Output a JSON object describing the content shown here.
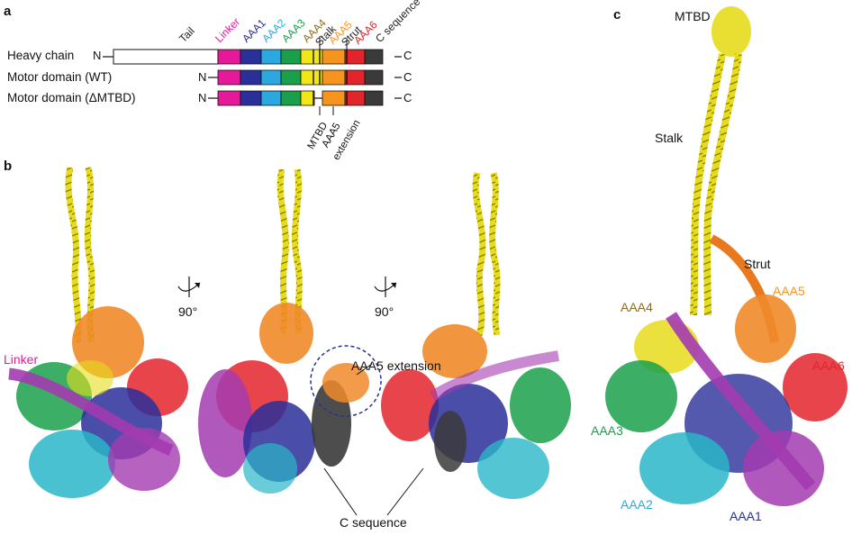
{
  "panels": {
    "a": "a",
    "b": "b",
    "c": "c"
  },
  "panel_a": {
    "rows": [
      "Heavy chain",
      "Motor domain (WT)",
      "Motor domain (ΔMTBD)"
    ],
    "n_term": "N",
    "c_term": "C",
    "domains": [
      {
        "label": "Tail",
        "color": "#222222"
      },
      {
        "label": "Linker",
        "color": "#e6199b"
      },
      {
        "label": "AAA1",
        "color": "#2a2f9a"
      },
      {
        "label": "AAA2",
        "color": "#29a9e0"
      },
      {
        "label": "AAA3",
        "color": "#1aa04a"
      },
      {
        "label": "AAA4",
        "color": "#8a6d1e"
      },
      {
        "label": "Stalk",
        "color": "#222222"
      },
      {
        "label": "AAA5",
        "color": "#f7941d"
      },
      {
        "label": "Strut",
        "color": "#222222"
      },
      {
        "label": "AAA6",
        "color": "#e3242b"
      },
      {
        "label": "C sequence",
        "color": "#222222"
      }
    ],
    "segment_colors": {
      "linker": "#e6199b",
      "aaa1": "#2a2f9a",
      "aaa2": "#29a9e0",
      "aaa3": "#1aa04a",
      "aaa4": "#f2e615",
      "aaa5": "#f7941d",
      "aaa6": "#e3242b",
      "cseq": "#3a3a3a"
    },
    "below_labels": [
      "MTBD",
      "AAA5",
      "extension"
    ]
  },
  "panel_b": {
    "linker_label": "Linker",
    "rotation_label": "90°",
    "aaa5ext_label": "AAA5 extension",
    "cseq_label": "C sequence"
  },
  "panel_c": {
    "labels": [
      {
        "text": "MTBD",
        "color": "#111111"
      },
      {
        "text": "Stalk",
        "color": "#111111"
      },
      {
        "text": "Strut",
        "color": "#111111"
      },
      {
        "text": "AAA5",
        "color": "#f7941d"
      },
      {
        "text": "AAA4",
        "color": "#8a6d1e"
      },
      {
        "text": "AAA6",
        "color": "#e3242b"
      },
      {
        "text": "AAA3",
        "color": "#1aa04a"
      },
      {
        "text": "AAA2",
        "color": "#29a9e0"
      },
      {
        "text": "AAA1",
        "color": "#2a2f9a"
      }
    ]
  }
}
